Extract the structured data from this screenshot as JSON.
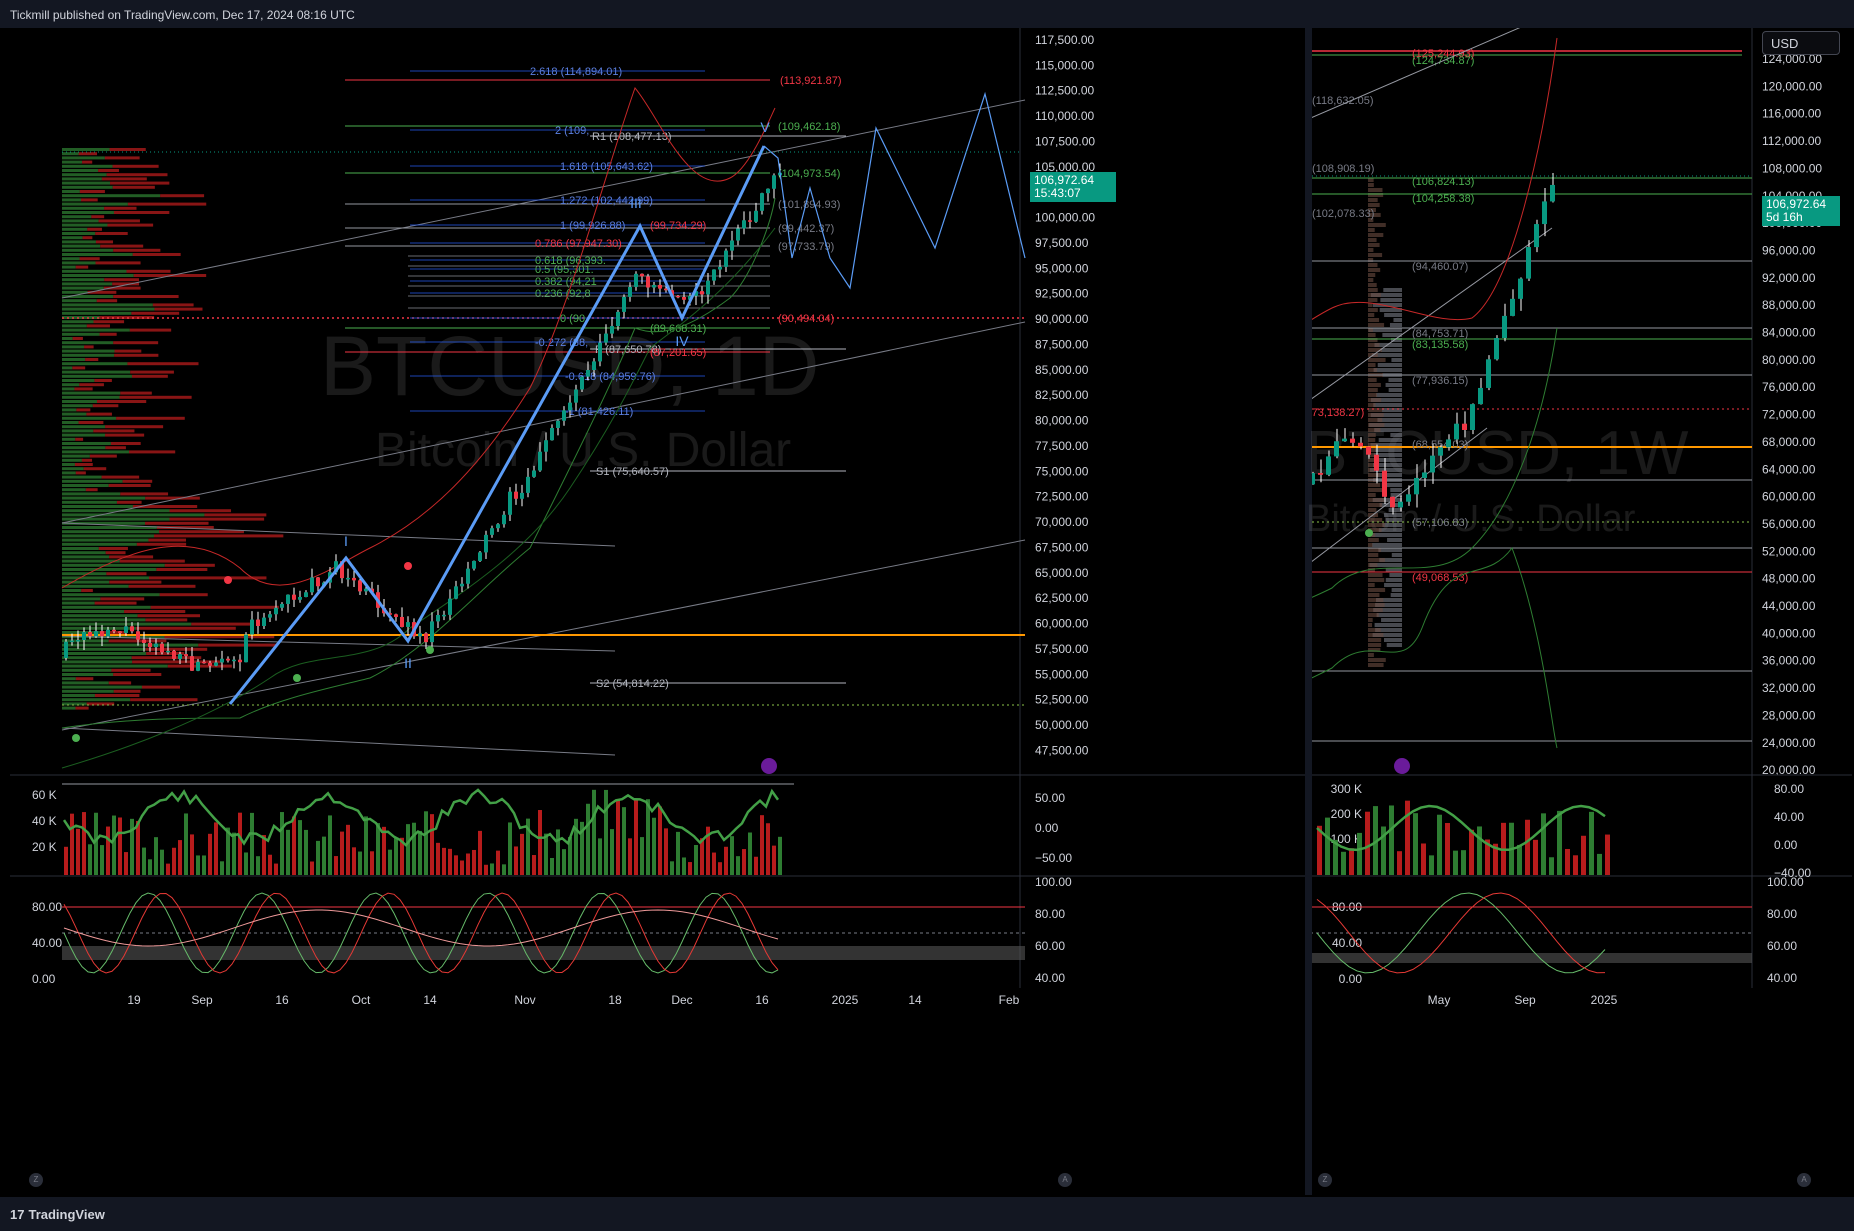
{
  "header": {
    "publisher_text": "Tickmill published on TradingView.com, Dec 17, 2024 08:16 UTC"
  },
  "footer": {
    "brand": "TradingView",
    "logo_mark": "17"
  },
  "left_chart": {
    "symbol_watermark": "BTCUSD, 1D",
    "name_watermark": "Bitcoin / U.S. Dollar",
    "last_price": "106,972.64",
    "countdown": "15:43:07",
    "price_axis": [
      "117,500.00",
      "115,000.00",
      "112,500.00",
      "110,000.00",
      "107,500.00",
      "105,000.00",
      "102,500.00",
      "100,000.00",
      "97,500.00",
      "95,000.00",
      "92,500.00",
      "90,000.00",
      "87,500.00",
      "85,000.00",
      "82,500.00",
      "80,000.00",
      "77,500.00",
      "75,000.00",
      "72,500.00",
      "70,000.00",
      "67,500.00",
      "65,000.00",
      "62,500.00",
      "60,000.00",
      "57,500.00",
      "55,000.00",
      "52,500.00",
      "50,000.00",
      "47,500.00"
    ],
    "time_axis": [
      "19",
      "Sep",
      "16",
      "Oct",
      "14",
      "Nov",
      "18",
      "Dec",
      "16",
      "2025",
      "14",
      "Feb"
    ],
    "fib_ext_labels": [
      "2.618 (114,894.01)",
      "2 (109,",
      "1.618 (105,643.62)",
      "1.272 (102,442.99)",
      "1 (99,926.88)",
      "0.786 (97,947.30)",
      "0.618 (96,393.",
      "0.5 (95,301.",
      "0.382 (94,21",
      "0.236 (92,8",
      "0 (90",
      "-0.272 (88,",
      "-0.618 (84,959.76)",
      "-1 (81,426.11)"
    ],
    "pivot_labels": [
      "R1 (108,477.13)",
      "P (87,650.78)",
      "S1 (75,640.57)",
      "S2 (54,814.22)"
    ],
    "level_labels": [
      {
        "text": "(113,921.87)",
        "color": "#f23645"
      },
      {
        "text": "(109,462.18)",
        "color": "#4caf50"
      },
      {
        "text": "(104,973.54)",
        "color": "#4caf50"
      },
      {
        "text": "(101,894.93)",
        "color": "#787b86"
      },
      {
        "text": "(99,442.37)",
        "color": "#787b86"
      },
      {
        "text": "(97,733.79)",
        "color": "#787b86"
      },
      {
        "text": "(90,494.04)",
        "color": "#f23645"
      },
      {
        "text": "(89,668.31)",
        "color": "#4caf50"
      },
      {
        "text": "(87,201.65)",
        "color": "#f23645"
      },
      {
        "text": "(99,734.29)",
        "color": "#f23645"
      }
    ],
    "wave_labels": [
      "I",
      "II",
      "III",
      "IV",
      "V"
    ],
    "volume_axis": [
      "60 K",
      "40 K",
      "20 K"
    ],
    "rsi_axis": [
      "50.00",
      "0.00",
      "−50.00"
    ],
    "stoch_left_axis": [
      "80.00",
      "40.00",
      "0.00"
    ],
    "stoch_right_axis": [
      "100.00",
      "80.00",
      "60.00",
      "40.00"
    ]
  },
  "right_chart": {
    "symbol_watermark": "BTCUSD, 1W",
    "name_watermark": "Bitcoin / U.S. Dollar",
    "currency": "USD",
    "last_price": "106,972.64",
    "countdown": "5d 16h",
    "price_axis": [
      "124,000.00",
      "120,000.00",
      "116,000.00",
      "112,000.00",
      "108,000.00",
      "104,000.00",
      "100,000.00",
      "96,000.00",
      "92,000.00",
      "88,000.00",
      "84,000.00",
      "80,000.00",
      "76,000.00",
      "72,000.00",
      "68,000.00",
      "64,000.00",
      "60,000.00",
      "56,000.00",
      "52,000.00",
      "48,000.00",
      "44,000.00",
      "40,000.00",
      "36,000.00",
      "32,000.00",
      "28,000.00",
      "24,000.00",
      "20,000.00"
    ],
    "time_axis": [
      "May",
      "Sep",
      "2025"
    ],
    "level_labels": [
      {
        "text": "(125,244.93)",
        "color": "#f23645"
      },
      {
        "text": "(124,734.87)",
        "color": "#4caf50"
      },
      {
        "text": "(118,632.05)",
        "color": "#787b86"
      },
      {
        "text": "(108,908.19)",
        "color": "#787b86"
      },
      {
        "text": "(106,824.13)",
        "color": "#4caf50"
      },
      {
        "text": "(104,258.38)",
        "color": "#4caf50"
      },
      {
        "text": "(102,078.33)",
        "color": "#787b86"
      },
      {
        "text": "(94,460.07)",
        "color": "#787b86"
      },
      {
        "text": "(84,753.71)",
        "color": "#787b86"
      },
      {
        "text": "(83,135.58)",
        "color": "#4caf50"
      },
      {
        "text": "(77,936.15)",
        "color": "#787b86"
      },
      {
        "text": "(73,138.27)",
        "color": "#f23645"
      },
      {
        "text": "(68,554.03)",
        "color": "#787b86"
      },
      {
        "text": "(57,106.83)",
        "color": "#787b86"
      },
      {
        "text": "(49,068.53)",
        "color": "#f23645"
      }
    ],
    "volume_axis": [
      "300 K",
      "200 K",
      "100 K"
    ],
    "rsi_axis": [
      "80.00",
      "40.00",
      "0.00",
      "−40.00"
    ],
    "stoch_left_axis": [
      "80.00",
      "40.00",
      "0.00"
    ],
    "stoch_right_axis": [
      "100.00",
      "80.00",
      "60.00",
      "40.00"
    ]
  },
  "controls": {
    "zoom_toggle": "Z",
    "auto_toggle": "A"
  },
  "colors": {
    "up": "#089981",
    "down": "#f23645",
    "wave": "#5b9cf6",
    "orange": "#ff9800",
    "fib_blue": "#2962ff",
    "pivot": "#b2b5be"
  }
}
